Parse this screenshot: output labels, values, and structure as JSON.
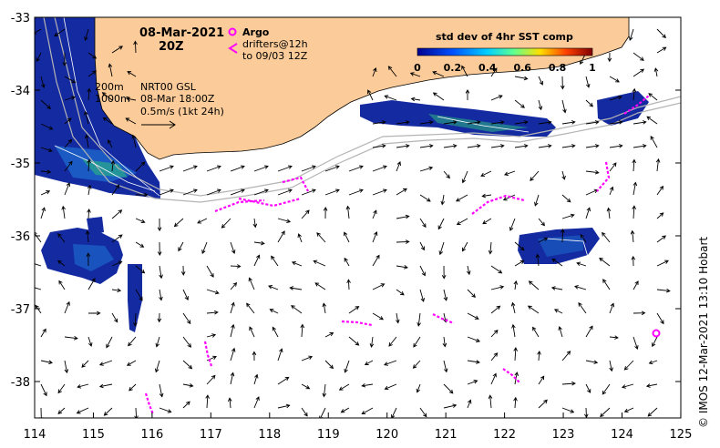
{
  "map": {
    "date": "08-Mar-2021",
    "time": "20Z",
    "legend_argo": "Argo",
    "legend_drifters": "drifters@12h",
    "legend_drifters_to": "to 09/03 12Z",
    "isobath_1": "200m",
    "isobath_2": "1000m",
    "product": "NRT00 GSL",
    "product_time": "08-Mar 18:00Z",
    "scale_label": "0.5m/s (1kt 24h)",
    "colorbar_title": "std dev of 4hr SST comp",
    "colorbar_ticks": [
      "0",
      "0.2",
      "0.4",
      "0.6",
      "0.8",
      "1"
    ],
    "credit": "© IMOS 12-Mar-2021 13:10 Hobart",
    "lon_ticks": [
      "114",
      "115",
      "116",
      "117",
      "118",
      "119",
      "120",
      "121",
      "122",
      "123",
      "124",
      "125"
    ],
    "lat_ticks": [
      "-33",
      "-34",
      "-35",
      "-36",
      "-37",
      "-38"
    ],
    "colors": {
      "land": "#fbcb99",
      "drifter": "#ff00ff",
      "argo": "#ff00ff",
      "sst_low": "#0a1e8c",
      "sst_mid": "#1e8cdc",
      "isobath": "#b4b4b4"
    }
  }
}
